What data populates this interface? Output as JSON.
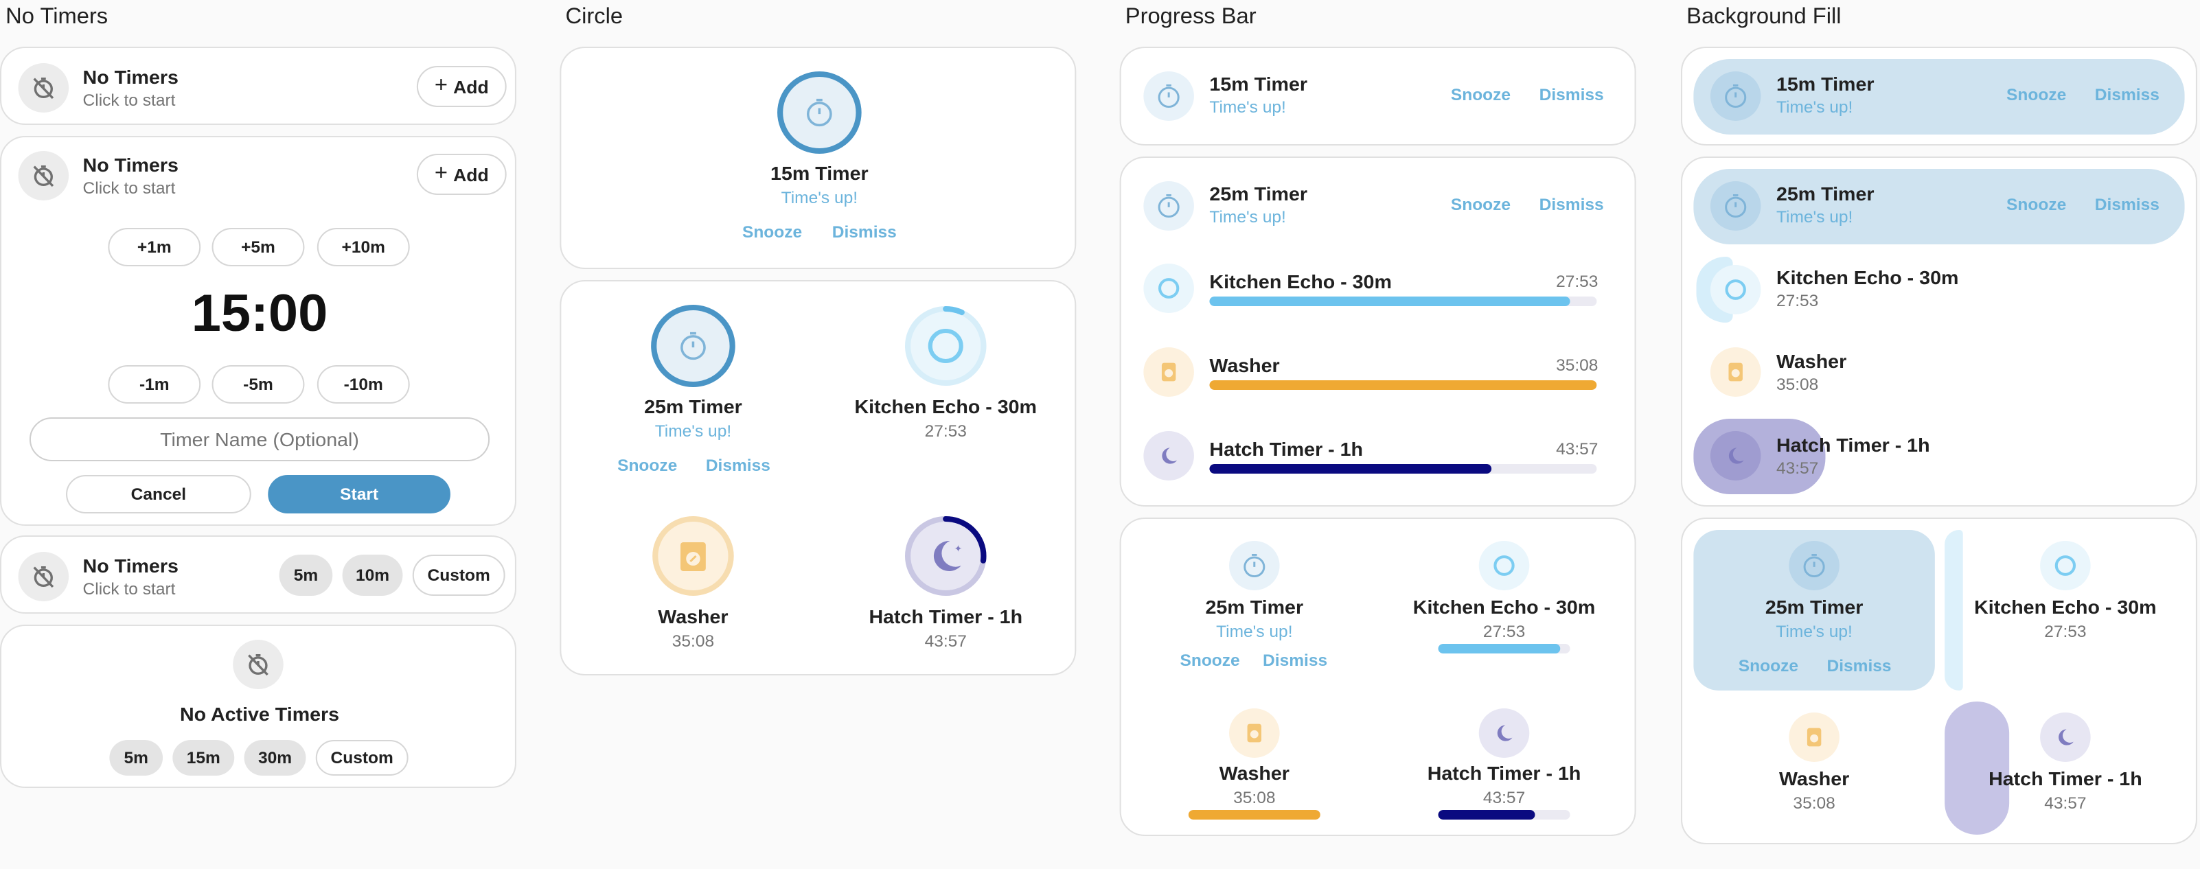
{
  "colors": {
    "timer_blue": "#4a95c6",
    "echo_blue": "#6cc3ee",
    "washer_orange": "#efa933",
    "hatch_navy": "#0a0a80",
    "hatch_lavender": "#7f7cc0",
    "link_blue": "#6cb4dc",
    "start_button": "#4a95c6"
  },
  "columns": {
    "no_timers": "No Timers",
    "circle": "Circle",
    "progress_bar": "Progress Bar",
    "background_fill": "Background Fill"
  },
  "no_timers": {
    "title": "No Timers",
    "subtitle": "Click to start",
    "add_label": "Add",
    "increments": [
      "+1m",
      "+5m",
      "+10m"
    ],
    "decrements": [
      "-1m",
      "-5m",
      "-10m"
    ],
    "time_display": "15:00",
    "name_placeholder": "Timer Name (Optional)",
    "cancel_label": "Cancel",
    "start_label": "Start",
    "preset_row": [
      "5m",
      "10m"
    ],
    "custom_label": "Custom",
    "no_active_title": "No Active Timers",
    "preset_bottom": [
      "5m",
      "15m",
      "30m"
    ]
  },
  "timers": {
    "timer15": {
      "name": "15m Timer",
      "status": "Time's up!"
    },
    "timer25": {
      "name": "25m Timer",
      "status": "Time's up!"
    },
    "echo": {
      "name": "Kitchen Echo - 30m",
      "remaining": "27:53",
      "progress": 0.93
    },
    "washer": {
      "name": "Washer",
      "remaining": "35:08",
      "progress": 1.0
    },
    "hatch": {
      "name": "Hatch Timer - 1h",
      "remaining": "43:57",
      "progress": 0.73
    }
  },
  "actions": {
    "snooze": "Snooze",
    "dismiss": "Dismiss"
  },
  "icons": {
    "timer_off": "timer-off-icon",
    "plus": "plus-icon",
    "timer": "stopwatch-icon",
    "echo": "echo-ring-icon",
    "washer": "washing-machine-icon",
    "hatch": "moon-stars-icon"
  }
}
